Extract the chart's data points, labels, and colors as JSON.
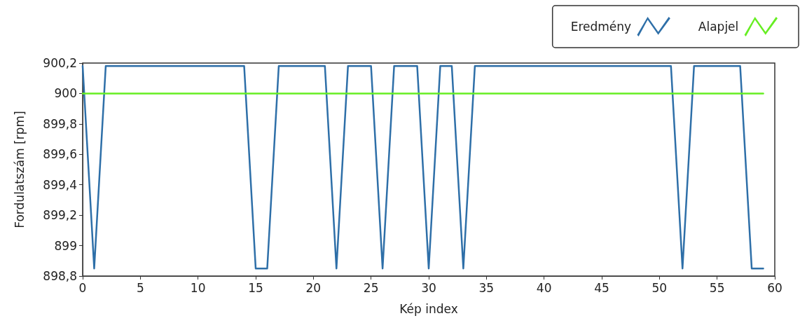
{
  "chart_data": {
    "type": "line",
    "xlabel": "Kép index",
    "ylabel": "Fordulatszám [rpm]",
    "x": [
      0,
      1,
      2,
      3,
      4,
      5,
      6,
      7,
      8,
      9,
      10,
      11,
      12,
      13,
      14,
      15,
      16,
      17,
      18,
      19,
      20,
      21,
      22,
      23,
      24,
      25,
      26,
      27,
      28,
      29,
      30,
      31,
      32,
      33,
      34,
      35,
      36,
      37,
      38,
      39,
      40,
      41,
      42,
      43,
      44,
      45,
      46,
      47,
      48,
      49,
      50,
      51,
      52,
      53,
      54,
      55,
      56,
      57,
      58,
      59
    ],
    "series": [
      {
        "name": "Eredmény",
        "color": "#2e6fa8",
        "values": [
          900.18,
          898.85,
          900.18,
          900.18,
          900.18,
          900.18,
          900.18,
          900.18,
          900.18,
          900.18,
          900.18,
          900.18,
          900.18,
          900.18,
          900.18,
          898.85,
          898.85,
          900.18,
          900.18,
          900.18,
          900.18,
          900.18,
          898.85,
          900.18,
          900.18,
          900.18,
          898.85,
          900.18,
          900.18,
          900.18,
          898.85,
          900.18,
          900.18,
          898.85,
          900.18,
          900.18,
          900.18,
          900.18,
          900.18,
          900.18,
          900.18,
          900.18,
          900.18,
          900.18,
          900.18,
          900.18,
          900.18,
          900.18,
          900.18,
          900.18,
          900.18,
          900.18,
          898.85,
          900.18,
          900.18,
          900.18,
          900.18,
          900.18,
          898.85,
          898.85
        ]
      },
      {
        "name": "Alapjel",
        "color": "#66ee22",
        "values": [
          900,
          900,
          900,
          900,
          900,
          900,
          900,
          900,
          900,
          900,
          900,
          900,
          900,
          900,
          900,
          900,
          900,
          900,
          900,
          900,
          900,
          900,
          900,
          900,
          900,
          900,
          900,
          900,
          900,
          900,
          900,
          900,
          900,
          900,
          900,
          900,
          900,
          900,
          900,
          900,
          900,
          900,
          900,
          900,
          900,
          900,
          900,
          900,
          900,
          900,
          900,
          900,
          900,
          900,
          900,
          900,
          900,
          900,
          900,
          900
        ]
      }
    ],
    "xlim": [
      0,
      60
    ],
    "xticks": [
      0,
      5,
      10,
      15,
      20,
      25,
      30,
      35,
      40,
      45,
      50,
      55,
      60
    ],
    "ylim": [
      898.8,
      900.2
    ],
    "yticks": [
      {
        "value": 898.8,
        "label": "898,8"
      },
      899,
      {
        "value": 899.2,
        "label": "899,2"
      },
      {
        "value": 899.4,
        "label": "899,4"
      },
      {
        "value": 899.6,
        "label": "899,6"
      },
      {
        "value": 899.8,
        "label": "899,8"
      },
      900,
      {
        "value": 900.2,
        "label": "900,2"
      }
    ],
    "grid": false,
    "legend": "top right",
    "marker": "none",
    "line_style": "solid"
  }
}
